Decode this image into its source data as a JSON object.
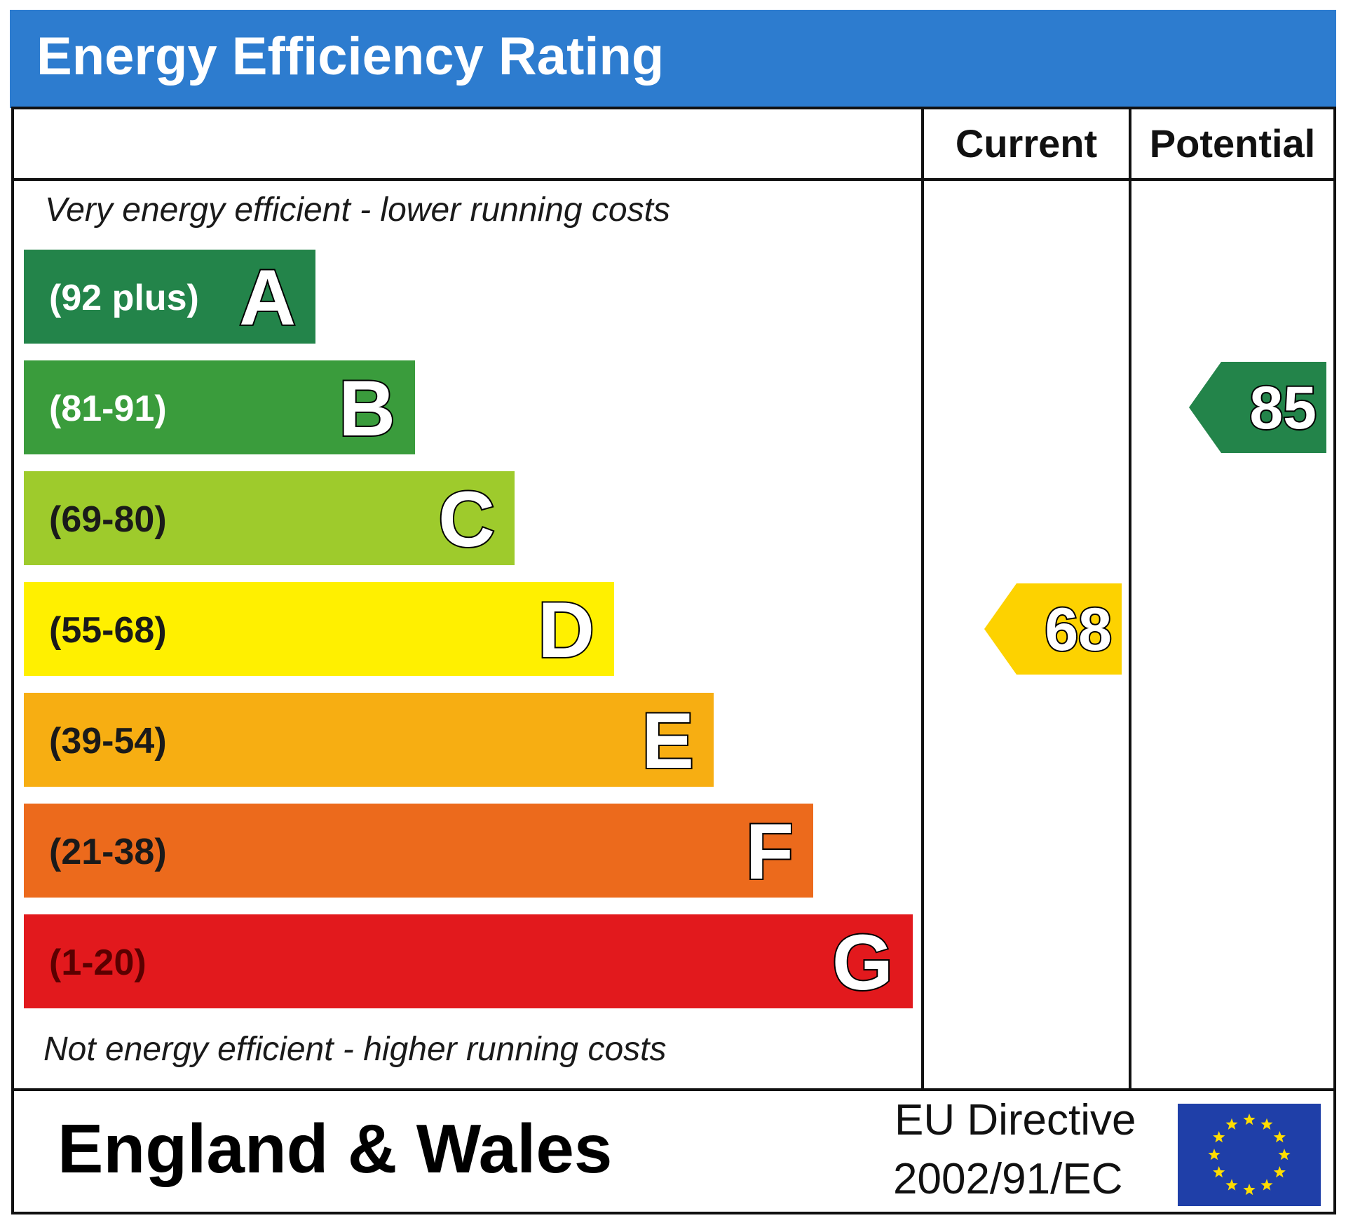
{
  "title": "Energy Efficiency Rating",
  "columns": {
    "current": "Current",
    "potential": "Potential"
  },
  "top_caption": "Very energy efficient - lower running costs",
  "bottom_caption": "Not energy efficient - higher running costs",
  "footer": {
    "region": "England & Wales",
    "directive_line1": "EU Directive",
    "directive_line2": "2002/91/EC"
  },
  "colors": {
    "header_blue": "#2d7ccf",
    "eu_flag_blue": "#1f3fa8",
    "eu_star": "#ffdd00"
  },
  "chart_data": {
    "type": "bar",
    "bands": [
      {
        "letter": "A",
        "range": "(92 plus)",
        "min": 92,
        "max": 100,
        "color": "#23844a",
        "range_text_color": "#ffffff"
      },
      {
        "letter": "B",
        "range": "(81-91)",
        "min": 81,
        "max": 91,
        "color": "#3a9c3c",
        "range_text_color": "#ffffff"
      },
      {
        "letter": "C",
        "range": "(69-80)",
        "min": 69,
        "max": 80,
        "color": "#9ecb2c",
        "range_text_color": "#1a1a1a"
      },
      {
        "letter": "D",
        "range": "(55-68)",
        "min": 55,
        "max": 68,
        "color": "#fff000",
        "range_text_color": "#1a1a1a"
      },
      {
        "letter": "E",
        "range": "(39-54)",
        "min": 39,
        "max": 54,
        "color": "#f7ae12",
        "range_text_color": "#1a1a1a"
      },
      {
        "letter": "F",
        "range": "(21-38)",
        "min": 21,
        "max": 38,
        "color": "#ec6a1c",
        "range_text_color": "#1a1a1a"
      },
      {
        "letter": "G",
        "range": "(1-20)",
        "min": 1,
        "max": 20,
        "color": "#e2191d",
        "range_text_color": "#5a0000"
      }
    ],
    "current": {
      "value": 68,
      "band": "D",
      "color": "#fdd200"
    },
    "potential": {
      "value": 85,
      "band": "B",
      "color": "#23844a"
    }
  }
}
